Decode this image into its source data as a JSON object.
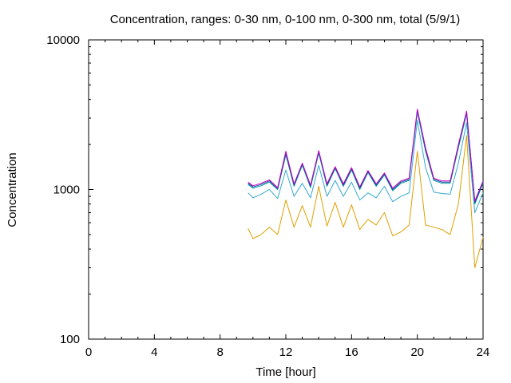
{
  "chart_data": {
    "type": "line",
    "title": "Concentration, ranges: 0-30 nm, 0-100 nm, 0-300 nm, total (5/9/1)",
    "xlabel": "Time [hour]",
    "ylabel": "Concentration",
    "xlim": [
      0,
      24
    ],
    "ylim": [
      100,
      10000
    ],
    "yscale": "log",
    "xticks": [
      0,
      4,
      8,
      12,
      16,
      20,
      24
    ],
    "yticks": [
      100,
      1000,
      10000
    ],
    "ytick_labels": [
      "100",
      "1000",
      "10000"
    ],
    "grid": false,
    "legend": "none",
    "x": [
      9.7,
      10.0,
      10.5,
      11.0,
      11.5,
      12.0,
      12.5,
      13.0,
      13.5,
      14.0,
      14.5,
      15.0,
      15.5,
      16.0,
      16.5,
      17.0,
      17.5,
      18.0,
      18.5,
      19.0,
      19.5,
      20.0,
      20.5,
      21.0,
      21.5,
      22.0,
      22.5,
      23.0,
      23.5,
      24.0
    ],
    "series": [
      {
        "color": "#e0a000",
        "values": [
          550,
          470,
          500,
          560,
          500,
          850,
          560,
          780,
          560,
          1050,
          570,
          820,
          560,
          790,
          540,
          630,
          580,
          700,
          490,
          520,
          580,
          1800,
          580,
          560,
          540,
          500,
          800,
          2300,
          300,
          480
        ]
      },
      {
        "color": "#35a8d0",
        "values": [
          950,
          880,
          930,
          1000,
          870,
          1350,
          900,
          1100,
          880,
          1450,
          900,
          1150,
          900,
          1120,
          850,
          950,
          880,
          1050,
          830,
          900,
          950,
          2900,
          1400,
          960,
          940,
          930,
          1500,
          2800,
          700,
          950
        ]
      },
      {
        "color": "#00a0a0",
        "values": [
          1080,
          1020,
          1060,
          1120,
          1000,
          1700,
          1050,
          1450,
          1030,
          1750,
          1050,
          1380,
          1050,
          1350,
          1000,
          1300,
          1050,
          1250,
          980,
          1100,
          1150,
          3300,
          1800,
          1150,
          1100,
          1100,
          1900,
          3200,
          800,
          1100
        ]
      },
      {
        "color": "#2040a0",
        "values": [
          1100,
          1040,
          1080,
          1140,
          1010,
          1750,
          1070,
          1480,
          1050,
          1790,
          1070,
          1400,
          1070,
          1380,
          1020,
          1320,
          1070,
          1270,
          1000,
          1120,
          1170,
          3400,
          1850,
          1170,
          1120,
          1120,
          1950,
          3300,
          820,
          1120
        ]
      },
      {
        "color": "#c000c0",
        "values": [
          1120,
          1060,
          1100,
          1160,
          1030,
          1800,
          1090,
          1500,
          1070,
          1820,
          1090,
          1420,
          1090,
          1400,
          1040,
          1340,
          1090,
          1290,
          1020,
          1140,
          1190,
          3450,
          1900,
          1190,
          1140,
          1140,
          2000,
          3350,
          840,
          1140
        ]
      }
    ]
  }
}
